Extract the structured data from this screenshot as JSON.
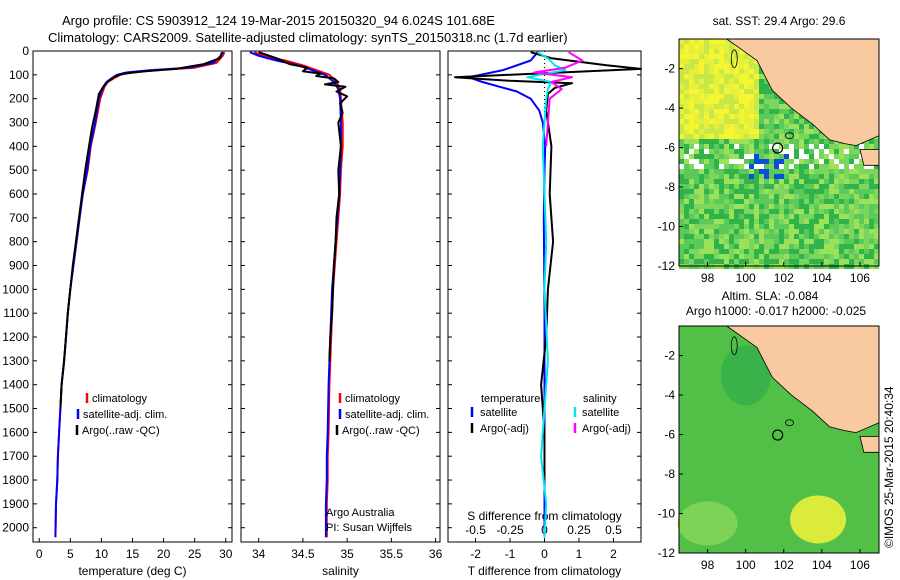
{
  "header": {
    "line1": "Argo profile: CS 5903912_124 19-Mar-2015 20150320_94 6.024S 101.68E",
    "line2": "Climatology: CARS2009. Satellite-adjusted climatology: synTS_20150318.nc (1.7d earlier)"
  },
  "depth_ticks": [
    0,
    100,
    200,
    300,
    400,
    500,
    600,
    700,
    800,
    900,
    1000,
    1100,
    1200,
    1300,
    1400,
    1500,
    1600,
    1700,
    1800,
    1900,
    2000
  ],
  "colors": {
    "climatology": "#ff0000",
    "satellite": "#0000ff",
    "argo": "#000000",
    "sal_sat": "#00e5ee",
    "sal_argo": "#ff00ff",
    "land": "#f9c9a0",
    "sst_green": "#5ec85e"
  },
  "chart_data": [
    {
      "type": "line",
      "id": "temperature",
      "xlabel": "temperature (deg C)",
      "xlim": [
        -1,
        31
      ],
      "ylim": [
        2060,
        0
      ],
      "xticks": [
        0,
        5,
        10,
        15,
        20,
        25,
        30
      ],
      "legend": [
        "climatology",
        "satellite-adj. clim.",
        "Argo(..raw -QC)"
      ],
      "series": [
        {
          "name": "climatology",
          "color": "#ff0000",
          "x": [
            29.8,
            29.5,
            28.5,
            25,
            19,
            15,
            13,
            12,
            11,
            10.5,
            9.8,
            9.1,
            8.3,
            7.8,
            7.0,
            6.5,
            6.0,
            5.5,
            5.0,
            4.6,
            4.3,
            4.0,
            3.6,
            3.4,
            3.2,
            3.0,
            2.9,
            2.7,
            2.6
          ],
          "y": [
            5,
            20,
            50,
            70,
            80,
            90,
            100,
            115,
            130,
            150,
            200,
            300,
            400,
            500,
            600,
            700,
            800,
            900,
            1000,
            1100,
            1200,
            1300,
            1400,
            1500,
            1600,
            1700,
            1800,
            1900,
            2040
          ]
        },
        {
          "name": "satellite-adj. clim.",
          "color": "#0000ff",
          "x": [
            29.6,
            29.2,
            28.0,
            24,
            18,
            14,
            12.5,
            11.6,
            10.8,
            10.3,
            9.6,
            9.0,
            8.2,
            7.7,
            7.0,
            6.5,
            6.0,
            5.5,
            5.0,
            4.6,
            4.3,
            4.0,
            3.6,
            3.4,
            3.2,
            3.0,
            2.9,
            2.7,
            2.6
          ],
          "y": [
            5,
            20,
            50,
            70,
            80,
            90,
            100,
            115,
            130,
            150,
            200,
            300,
            400,
            500,
            600,
            700,
            800,
            900,
            1000,
            1100,
            1200,
            1300,
            1400,
            1500,
            1600,
            1700,
            1800,
            1900,
            2040
          ]
        },
        {
          "name": "Argo(..raw -QC)",
          "color": "#000000",
          "x": [
            29.4,
            29.0,
            26.5,
            22,
            17,
            13.5,
            12,
            11,
            10.3,
            9.6,
            9.1,
            8.5,
            8.0,
            7.4,
            6.9,
            6.4,
            5.9,
            5.4,
            5.0,
            4.6,
            4.3,
            4.0,
            3.6,
            3.4
          ],
          "y": [
            5,
            30,
            55,
            75,
            85,
            95,
            110,
            130,
            150,
            180,
            250,
            320,
            400,
            500,
            600,
            700,
            800,
            900,
            1000,
            1100,
            1200,
            1300,
            1400,
            1500
          ]
        }
      ]
    },
    {
      "type": "line",
      "id": "salinity",
      "xlabel": "salinity",
      "xlim": [
        33.8,
        36.05
      ],
      "ylim": [
        2060,
        0
      ],
      "xticks": [
        34,
        34.5,
        35,
        35.5,
        36
      ],
      "xticklabels": [
        "34",
        "34.5",
        "35",
        "35.5",
        "36"
      ],
      "legend": [
        "climatology",
        "satellite-adj. clim.",
        "Argo(..raw -QC)"
      ],
      "annotation": [
        "Argo Australia",
        "PI: Susan Wijffels"
      ],
      "series": [
        {
          "name": "climatology",
          "color": "#ff0000",
          "x": [
            33.95,
            34.05,
            34.3,
            34.5,
            34.65,
            34.8,
            34.88,
            34.92,
            34.93,
            34.95,
            34.95,
            34.93,
            34.92,
            34.9,
            34.88,
            34.86,
            34.84,
            34.82,
            34.8,
            34.79,
            34.78,
            34.78,
            34.77,
            34.77
          ],
          "y": [
            5,
            20,
            40,
            60,
            80,
            100,
            130,
            160,
            200,
            300,
            400,
            500,
            600,
            700,
            800,
            900,
            1000,
            1200,
            1400,
            1600,
            1700,
            1800,
            1900,
            2040
          ]
        },
        {
          "name": "satellite-adj. clim.",
          "color": "#0000ff",
          "x": [
            33.9,
            34.0,
            34.2,
            34.45,
            34.6,
            34.75,
            34.85,
            34.9,
            34.92,
            34.93,
            34.93,
            34.92,
            34.91,
            34.89,
            34.87,
            34.85,
            34.83,
            34.81,
            34.79,
            34.78,
            34.77,
            34.77,
            34.76,
            34.76
          ],
          "y": [
            5,
            20,
            40,
            60,
            80,
            100,
            130,
            160,
            200,
            300,
            400,
            500,
            600,
            700,
            800,
            900,
            1000,
            1200,
            1400,
            1600,
            1700,
            1800,
            1900,
            2040
          ]
        },
        {
          "name": "Argo(..raw -QC)",
          "color": "#000000",
          "x": [
            34.0,
            34.2,
            34.35,
            34.55,
            34.5,
            34.7,
            34.65,
            34.85,
            34.9,
            34.75,
            34.98,
            34.88,
            35.0,
            34.92,
            34.95,
            34.9,
            34.93,
            34.9,
            34.91,
            34.88,
            34.87,
            34.85,
            34.84,
            34.83,
            34.81,
            34.8
          ],
          "y": [
            5,
            30,
            55,
            70,
            85,
            95,
            105,
            115,
            130,
            140,
            150,
            170,
            190,
            220,
            260,
            300,
            400,
            500,
            600,
            700,
            800,
            900,
            1000,
            1100,
            1200,
            1300
          ]
        }
      ]
    },
    {
      "type": "line",
      "id": "difference",
      "xlabel": "T difference from climatology",
      "xlabel_top": "S difference from climatology",
      "xlim": [
        -2.8,
        2.8
      ],
      "ylim": [
        2060,
        0
      ],
      "xticks": [
        -2,
        -1,
        0,
        1,
        2
      ],
      "top_ticklabels": [
        "-0.5",
        "-0.25",
        "0",
        "0.25",
        "0.5"
      ],
      "legend_groups": [
        {
          "heading": "temperature",
          "items": [
            "satellite",
            "Argo(-adj)"
          ]
        },
        {
          "heading": "salinity",
          "items": [
            "satellite",
            "Argo(-adj)"
          ]
        }
      ],
      "series": [
        {
          "name": "temperature satellite",
          "color": "#0000ff",
          "x": [
            -0.2,
            -0.4,
            -1.2,
            -2.2,
            -1.8,
            -1.3,
            -0.8,
            -0.4,
            -0.15,
            -0.05,
            0.02,
            0.0,
            -0.02,
            -0.01,
            0.0,
            0.0,
            0.0,
            0.0
          ],
          "y": [
            5,
            40,
            80,
            110,
            130,
            150,
            170,
            200,
            250,
            300,
            400,
            500,
            700,
            900,
            1100,
            1400,
            1700,
            2040
          ]
        },
        {
          "name": "temperature Argo(-adj)",
          "color": "#000000",
          "x": [
            -0.4,
            0.2,
            1.8,
            2.8,
            -2.6,
            -1.0,
            0.8,
            0.3,
            0.1,
            0.05,
            0.2,
            0.15,
            0.25,
            0.1,
            0.05,
            -0.1,
            0.0,
            0.0
          ],
          "y": [
            5,
            30,
            60,
            75,
            110,
            125,
            135,
            155,
            180,
            250,
            400,
            600,
            800,
            1000,
            1200,
            1400,
            1600,
            1800
          ]
        },
        {
          "name": "salinity satellite",
          "color": "#00e5ee",
          "x": [
            -0.2,
            0.1,
            0.3,
            0.6,
            -0.5,
            0.2,
            0.1,
            0.05,
            0.0,
            -0.05,
            0.0,
            0.05,
            0.0,
            0.1,
            0.0,
            -0.1,
            0.05,
            0.0
          ],
          "y": [
            5,
            30,
            60,
            80,
            110,
            130,
            160,
            200,
            300,
            400,
            600,
            800,
            1000,
            1300,
            1500,
            1700,
            1900,
            2040
          ]
        },
        {
          "name": "salinity Argo(-adj)",
          "color": "#ff00ff",
          "x": [
            0.7,
            1.1,
            0.6,
            -0.3,
            0.8,
            0.2,
            0.5,
            0.15,
            0.1,
            0.05
          ],
          "y": [
            5,
            40,
            70,
            90,
            110,
            130,
            160,
            200,
            300,
            400
          ]
        }
      ]
    },
    {
      "type": "heatmap",
      "id": "sst_map",
      "title": "sat. SST: 29.4 Argo: 29.6",
      "xlim": [
        96.5,
        107
      ],
      "ylim": [
        -12,
        -0.5
      ],
      "xticks": [
        98,
        100,
        102,
        104,
        106
      ],
      "yticks": [
        -2,
        -4,
        -6,
        -8,
        -10,
        -12
      ],
      "marker": {
        "lon": 101.68,
        "lat": -6.024
      }
    },
    {
      "type": "heatmap",
      "id": "sla_map",
      "title": "Altim. SLA: -0.084",
      "subtitle": "Argo h1000: -0.017 h2000: -0.025",
      "xlim": [
        96.5,
        107
      ],
      "ylim": [
        -12,
        -0.5
      ],
      "xticks": [
        98,
        100,
        102,
        104,
        106
      ],
      "yticks": [
        -2,
        -4,
        -6,
        -8,
        -10,
        -12
      ],
      "marker": {
        "lon": 101.68,
        "lat": -6.024
      }
    }
  ],
  "footer": {
    "stamp": "©IMOS 25-Mar-2015 20:40:34"
  }
}
